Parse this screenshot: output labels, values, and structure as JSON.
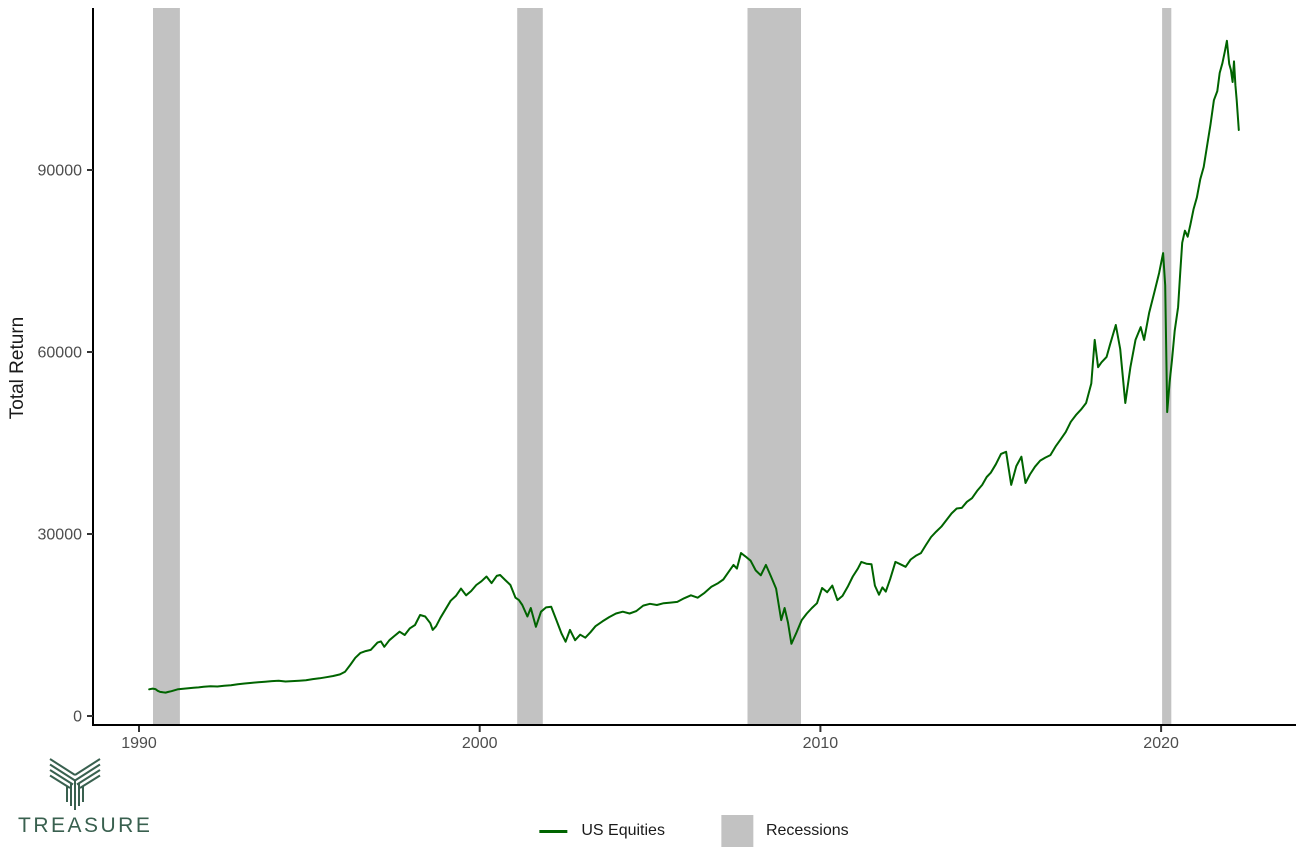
{
  "branding": {
    "logo_text": "TREASURE",
    "logo_color": "#39604f"
  },
  "colors": {
    "line": "#006400",
    "recession_band": "#c2c2c2",
    "axis": "#000000",
    "tick": "#333333",
    "tick_label": "#4d4d4d",
    "background": "#ffffff"
  },
  "chart_data": {
    "type": "line",
    "title": "",
    "xlabel": "",
    "ylabel": "Total Return",
    "xlim": [
      1988.65,
      2023.95
    ],
    "ylim": [
      0,
      116700
    ],
    "grid": "off",
    "x_ticks": [
      1990,
      2000,
      2010,
      2020
    ],
    "y_ticks": [
      0,
      30000,
      60000,
      90000
    ],
    "legend": {
      "position": "bottom-center",
      "entries": [
        "US Equities",
        "Recessions"
      ]
    },
    "series": [
      {
        "name": "US Equities",
        "color": "#006400",
        "points": [
          [
            1990.3,
            4400
          ],
          [
            1990.4,
            4520
          ],
          [
            1990.48,
            4430
          ],
          [
            1990.55,
            4150
          ],
          [
            1990.62,
            3980
          ],
          [
            1990.7,
            3900
          ],
          [
            1990.78,
            3850
          ],
          [
            1990.86,
            3980
          ],
          [
            1990.95,
            4080
          ],
          [
            1991.05,
            4250
          ],
          [
            1991.15,
            4420
          ],
          [
            1991.3,
            4500
          ],
          [
            1991.45,
            4560
          ],
          [
            1991.6,
            4650
          ],
          [
            1991.75,
            4720
          ],
          [
            1991.9,
            4830
          ],
          [
            1992.1,
            4900
          ],
          [
            1992.3,
            4870
          ],
          [
            1992.5,
            4980
          ],
          [
            1992.7,
            5060
          ],
          [
            1992.9,
            5230
          ],
          [
            1993.1,
            5350
          ],
          [
            1993.3,
            5450
          ],
          [
            1993.5,
            5570
          ],
          [
            1993.7,
            5660
          ],
          [
            1993.9,
            5750
          ],
          [
            1994.1,
            5820
          ],
          [
            1994.3,
            5690
          ],
          [
            1994.5,
            5760
          ],
          [
            1994.7,
            5820
          ],
          [
            1994.9,
            5900
          ],
          [
            1995.1,
            6080
          ],
          [
            1995.3,
            6220
          ],
          [
            1995.5,
            6400
          ],
          [
            1995.7,
            6600
          ],
          [
            1995.9,
            6850
          ],
          [
            1996.05,
            7300
          ],
          [
            1996.2,
            8400
          ],
          [
            1996.35,
            9600
          ],
          [
            1996.5,
            10400
          ],
          [
            1996.65,
            10700
          ],
          [
            1996.8,
            10900
          ],
          [
            1997.0,
            12100
          ],
          [
            1997.1,
            12300
          ],
          [
            1997.2,
            11400
          ],
          [
            1997.35,
            12500
          ],
          [
            1997.5,
            13200
          ],
          [
            1997.65,
            13900
          ],
          [
            1997.8,
            13350
          ],
          [
            1997.95,
            14450
          ],
          [
            1998.1,
            15000
          ],
          [
            1998.25,
            16650
          ],
          [
            1998.4,
            16400
          ],
          [
            1998.55,
            15300
          ],
          [
            1998.62,
            14200
          ],
          [
            1998.72,
            14800
          ],
          [
            1998.85,
            16200
          ],
          [
            1999.0,
            17600
          ],
          [
            1999.15,
            19000
          ],
          [
            1999.3,
            19800
          ],
          [
            1999.45,
            21000
          ],
          [
            1999.6,
            19900
          ],
          [
            1999.75,
            20600
          ],
          [
            1999.9,
            21600
          ],
          [
            2000.05,
            22200
          ],
          [
            2000.2,
            23000
          ],
          [
            2000.35,
            21900
          ],
          [
            2000.5,
            23100
          ],
          [
            2000.6,
            23250
          ],
          [
            2000.75,
            22400
          ],
          [
            2000.9,
            21600
          ],
          [
            2001.05,
            19500
          ],
          [
            2001.15,
            19100
          ],
          [
            2001.25,
            18300
          ],
          [
            2001.4,
            16400
          ],
          [
            2001.5,
            17800
          ],
          [
            2001.65,
            14700
          ],
          [
            2001.8,
            17200
          ],
          [
            2001.95,
            17900
          ],
          [
            2002.1,
            18000
          ],
          [
            2002.25,
            15800
          ],
          [
            2002.4,
            13600
          ],
          [
            2002.52,
            12250
          ],
          [
            2002.65,
            14200
          ],
          [
            2002.8,
            12500
          ],
          [
            2002.95,
            13400
          ],
          [
            2003.1,
            12900
          ],
          [
            2003.25,
            13800
          ],
          [
            2003.4,
            14800
          ],
          [
            2003.6,
            15600
          ],
          [
            2003.8,
            16300
          ],
          [
            2004.0,
            16900
          ],
          [
            2004.2,
            17200
          ],
          [
            2004.4,
            16900
          ],
          [
            2004.6,
            17300
          ],
          [
            2004.8,
            18200
          ],
          [
            2005.0,
            18500
          ],
          [
            2005.2,
            18300
          ],
          [
            2005.4,
            18600
          ],
          [
            2005.6,
            18700
          ],
          [
            2005.8,
            18800
          ],
          [
            2006.0,
            19400
          ],
          [
            2006.2,
            19900
          ],
          [
            2006.4,
            19500
          ],
          [
            2006.6,
            20300
          ],
          [
            2006.8,
            21300
          ],
          [
            2007.0,
            21900
          ],
          [
            2007.15,
            22500
          ],
          [
            2007.3,
            23700
          ],
          [
            2007.45,
            24900
          ],
          [
            2007.55,
            24300
          ],
          [
            2007.67,
            26870
          ],
          [
            2007.8,
            26300
          ],
          [
            2007.95,
            25600
          ],
          [
            2008.1,
            24000
          ],
          [
            2008.25,
            23200
          ],
          [
            2008.4,
            24900
          ],
          [
            2008.55,
            23000
          ],
          [
            2008.7,
            21000
          ],
          [
            2008.85,
            15800
          ],
          [
            2008.95,
            17800
          ],
          [
            2009.05,
            15400
          ],
          [
            2009.15,
            11900
          ],
          [
            2009.3,
            13800
          ],
          [
            2009.45,
            15800
          ],
          [
            2009.6,
            16900
          ],
          [
            2009.75,
            17800
          ],
          [
            2009.9,
            18600
          ],
          [
            2010.05,
            21100
          ],
          [
            2010.2,
            20400
          ],
          [
            2010.35,
            21500
          ],
          [
            2010.5,
            19100
          ],
          [
            2010.65,
            19800
          ],
          [
            2010.8,
            21300
          ],
          [
            2010.95,
            23000
          ],
          [
            2011.1,
            24300
          ],
          [
            2011.2,
            25400
          ],
          [
            2011.35,
            25100
          ],
          [
            2011.5,
            25000
          ],
          [
            2011.6,
            21500
          ],
          [
            2011.72,
            20000
          ],
          [
            2011.82,
            21200
          ],
          [
            2011.92,
            20500
          ],
          [
            2012.05,
            22600
          ],
          [
            2012.2,
            25400
          ],
          [
            2012.35,
            25000
          ],
          [
            2012.5,
            24600
          ],
          [
            2012.65,
            25800
          ],
          [
            2012.8,
            26400
          ],
          [
            2012.95,
            26850
          ],
          [
            2013.1,
            28200
          ],
          [
            2013.25,
            29500
          ],
          [
            2013.4,
            30400
          ],
          [
            2013.55,
            31200
          ],
          [
            2013.7,
            32300
          ],
          [
            2013.85,
            33400
          ],
          [
            2014.0,
            34200
          ],
          [
            2014.15,
            34300
          ],
          [
            2014.3,
            35300
          ],
          [
            2014.45,
            35900
          ],
          [
            2014.6,
            37100
          ],
          [
            2014.75,
            38100
          ],
          [
            2014.88,
            39400
          ],
          [
            2015.0,
            40100
          ],
          [
            2015.15,
            41500
          ],
          [
            2015.3,
            43200
          ],
          [
            2015.45,
            43550
          ],
          [
            2015.6,
            38100
          ],
          [
            2015.75,
            41200
          ],
          [
            2015.9,
            42750
          ],
          [
            2016.02,
            38400
          ],
          [
            2016.15,
            39800
          ],
          [
            2016.3,
            41100
          ],
          [
            2016.45,
            42100
          ],
          [
            2016.6,
            42600
          ],
          [
            2016.75,
            43000
          ],
          [
            2016.9,
            44400
          ],
          [
            2017.05,
            45600
          ],
          [
            2017.2,
            46800
          ],
          [
            2017.35,
            48500
          ],
          [
            2017.5,
            49600
          ],
          [
            2017.65,
            50500
          ],
          [
            2017.8,
            51600
          ],
          [
            2017.95,
            54800
          ],
          [
            2018.05,
            62000
          ],
          [
            2018.15,
            57500
          ],
          [
            2018.25,
            58300
          ],
          [
            2018.4,
            59200
          ],
          [
            2018.5,
            61200
          ],
          [
            2018.67,
            64450
          ],
          [
            2018.8,
            60500
          ],
          [
            2018.95,
            51600
          ],
          [
            2019.1,
            57500
          ],
          [
            2019.25,
            62000
          ],
          [
            2019.4,
            64100
          ],
          [
            2019.5,
            62000
          ],
          [
            2019.65,
            66500
          ],
          [
            2019.8,
            69800
          ],
          [
            2019.94,
            73000
          ],
          [
            2020.06,
            76300
          ],
          [
            2020.12,
            71000
          ],
          [
            2020.18,
            50100
          ],
          [
            2020.25,
            55000
          ],
          [
            2020.32,
            58700
          ],
          [
            2020.4,
            63500
          ],
          [
            2020.5,
            67400
          ],
          [
            2020.56,
            73000
          ],
          [
            2020.62,
            78000
          ],
          [
            2020.7,
            80000
          ],
          [
            2020.78,
            79000
          ],
          [
            2020.86,
            81000
          ],
          [
            2020.95,
            83500
          ],
          [
            2021.05,
            85500
          ],
          [
            2021.15,
            88500
          ],
          [
            2021.25,
            90500
          ],
          [
            2021.35,
            94000
          ],
          [
            2021.45,
            97500
          ],
          [
            2021.55,
            101500
          ],
          [
            2021.65,
            103000
          ],
          [
            2021.72,
            106000
          ],
          [
            2021.8,
            107600
          ],
          [
            2021.87,
            109500
          ],
          [
            2021.93,
            111300
          ],
          [
            2022.0,
            107500
          ],
          [
            2022.05,
            106500
          ],
          [
            2022.1,
            104500
          ],
          [
            2022.14,
            107900
          ],
          [
            2022.18,
            104000
          ],
          [
            2022.22,
            101500
          ],
          [
            2022.28,
            96600
          ]
        ]
      }
    ],
    "recessions": {
      "label": "Recessions",
      "color": "#c2c2c2",
      "spans": [
        [
          1990.41,
          1991.2
        ],
        [
          2001.1,
          2001.85
        ],
        [
          2007.86,
          2009.43
        ],
        [
          2020.03,
          2020.3
        ]
      ]
    }
  }
}
